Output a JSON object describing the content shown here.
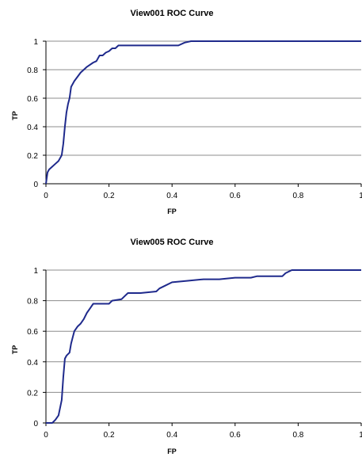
{
  "chart_data": [
    {
      "type": "line",
      "title": "View001 ROC Curve",
      "xlabel": "FP",
      "ylabel": "TP",
      "xlim": [
        0,
        1
      ],
      "ylim": [
        0,
        1
      ],
      "xticks": [
        "0",
        "0.2",
        "0.4",
        "0.6",
        "0.8",
        "1"
      ],
      "yticks": [
        "0",
        "0.2",
        "0.4",
        "0.6",
        "0.8",
        "1"
      ],
      "grid": true,
      "line_color": "#1f2a8c",
      "series": [
        {
          "x": [
            0,
            0.005,
            0.01,
            0.02,
            0.03,
            0.04,
            0.05,
            0.055,
            0.06,
            0.065,
            0.07,
            0.075,
            0.08,
            0.085,
            0.09,
            0.1,
            0.11,
            0.12,
            0.13,
            0.15,
            0.16,
            0.17,
            0.18,
            0.19,
            0.2,
            0.21,
            0.22,
            0.23,
            0.25,
            0.3,
            0.35,
            0.4,
            0.42,
            0.44,
            0.46,
            0.5,
            0.6,
            0.7,
            0.8,
            0.9,
            1.0
          ],
          "y": [
            0,
            0.08,
            0.1,
            0.12,
            0.14,
            0.16,
            0.2,
            0.28,
            0.4,
            0.5,
            0.56,
            0.6,
            0.68,
            0.7,
            0.72,
            0.75,
            0.78,
            0.8,
            0.82,
            0.85,
            0.86,
            0.9,
            0.9,
            0.92,
            0.93,
            0.95,
            0.95,
            0.97,
            0.97,
            0.97,
            0.97,
            0.97,
            0.97,
            0.99,
            1.0,
            1.0,
            1.0,
            1.0,
            1.0,
            1.0,
            1.0
          ]
        }
      ]
    },
    {
      "type": "line",
      "title": "View005 ROC Curve",
      "xlabel": "FP",
      "ylabel": "TP",
      "xlim": [
        0,
        1
      ],
      "ylim": [
        0,
        1
      ],
      "xticks": [
        "0",
        "0.2",
        "0.4",
        "0.6",
        "0.8",
        "1"
      ],
      "yticks": [
        "0",
        "0.2",
        "0.4",
        "0.6",
        "0.8",
        "1"
      ],
      "grid": true,
      "line_color": "#1f2a8c",
      "series": [
        {
          "x": [
            0,
            0.02,
            0.03,
            0.04,
            0.05,
            0.055,
            0.06,
            0.065,
            0.07,
            0.075,
            0.08,
            0.085,
            0.09,
            0.1,
            0.11,
            0.12,
            0.13,
            0.14,
            0.15,
            0.2,
            0.21,
            0.24,
            0.25,
            0.26,
            0.3,
            0.35,
            0.36,
            0.38,
            0.4,
            0.45,
            0.5,
            0.55,
            0.6,
            0.65,
            0.67,
            0.7,
            0.75,
            0.76,
            0.78,
            0.8,
            0.9,
            1.0
          ],
          "y": [
            0,
            0.0,
            0.02,
            0.05,
            0.15,
            0.3,
            0.42,
            0.44,
            0.45,
            0.46,
            0.52,
            0.56,
            0.6,
            0.63,
            0.65,
            0.68,
            0.72,
            0.75,
            0.78,
            0.78,
            0.8,
            0.81,
            0.83,
            0.85,
            0.85,
            0.86,
            0.88,
            0.9,
            0.92,
            0.93,
            0.94,
            0.94,
            0.95,
            0.95,
            0.96,
            0.96,
            0.96,
            0.98,
            1.0,
            1.0,
            1.0,
            1.0
          ]
        }
      ]
    }
  ]
}
